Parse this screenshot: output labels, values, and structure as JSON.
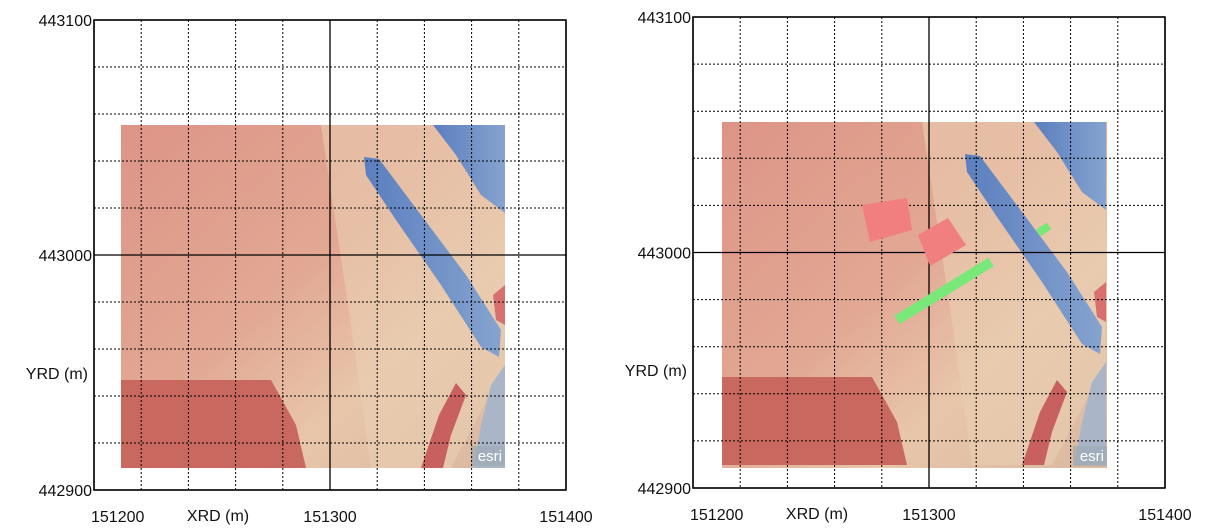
{
  "chart_data": [
    {
      "type": "map",
      "xlabel": "XRD (m)",
      "ylabel": "YRD (m)",
      "xlim": [
        151200,
        151400
      ],
      "ylim": [
        442900,
        443100
      ],
      "xticks": [
        151200,
        151300,
        151400
      ],
      "yticks": [
        442900,
        443000,
        443100
      ],
      "grid": true,
      "attribution": "esri"
    },
    {
      "type": "map",
      "xlabel": "XRD (m)",
      "ylabel": "YRD (m)",
      "xlim": [
        151200,
        151400
      ],
      "ylim": [
        442900,
        443100
      ],
      "xticks": [
        151200,
        151300,
        151400
      ],
      "yticks": [
        442900,
        443000,
        443100
      ],
      "grid": true,
      "attribution": "esri"
    }
  ]
}
